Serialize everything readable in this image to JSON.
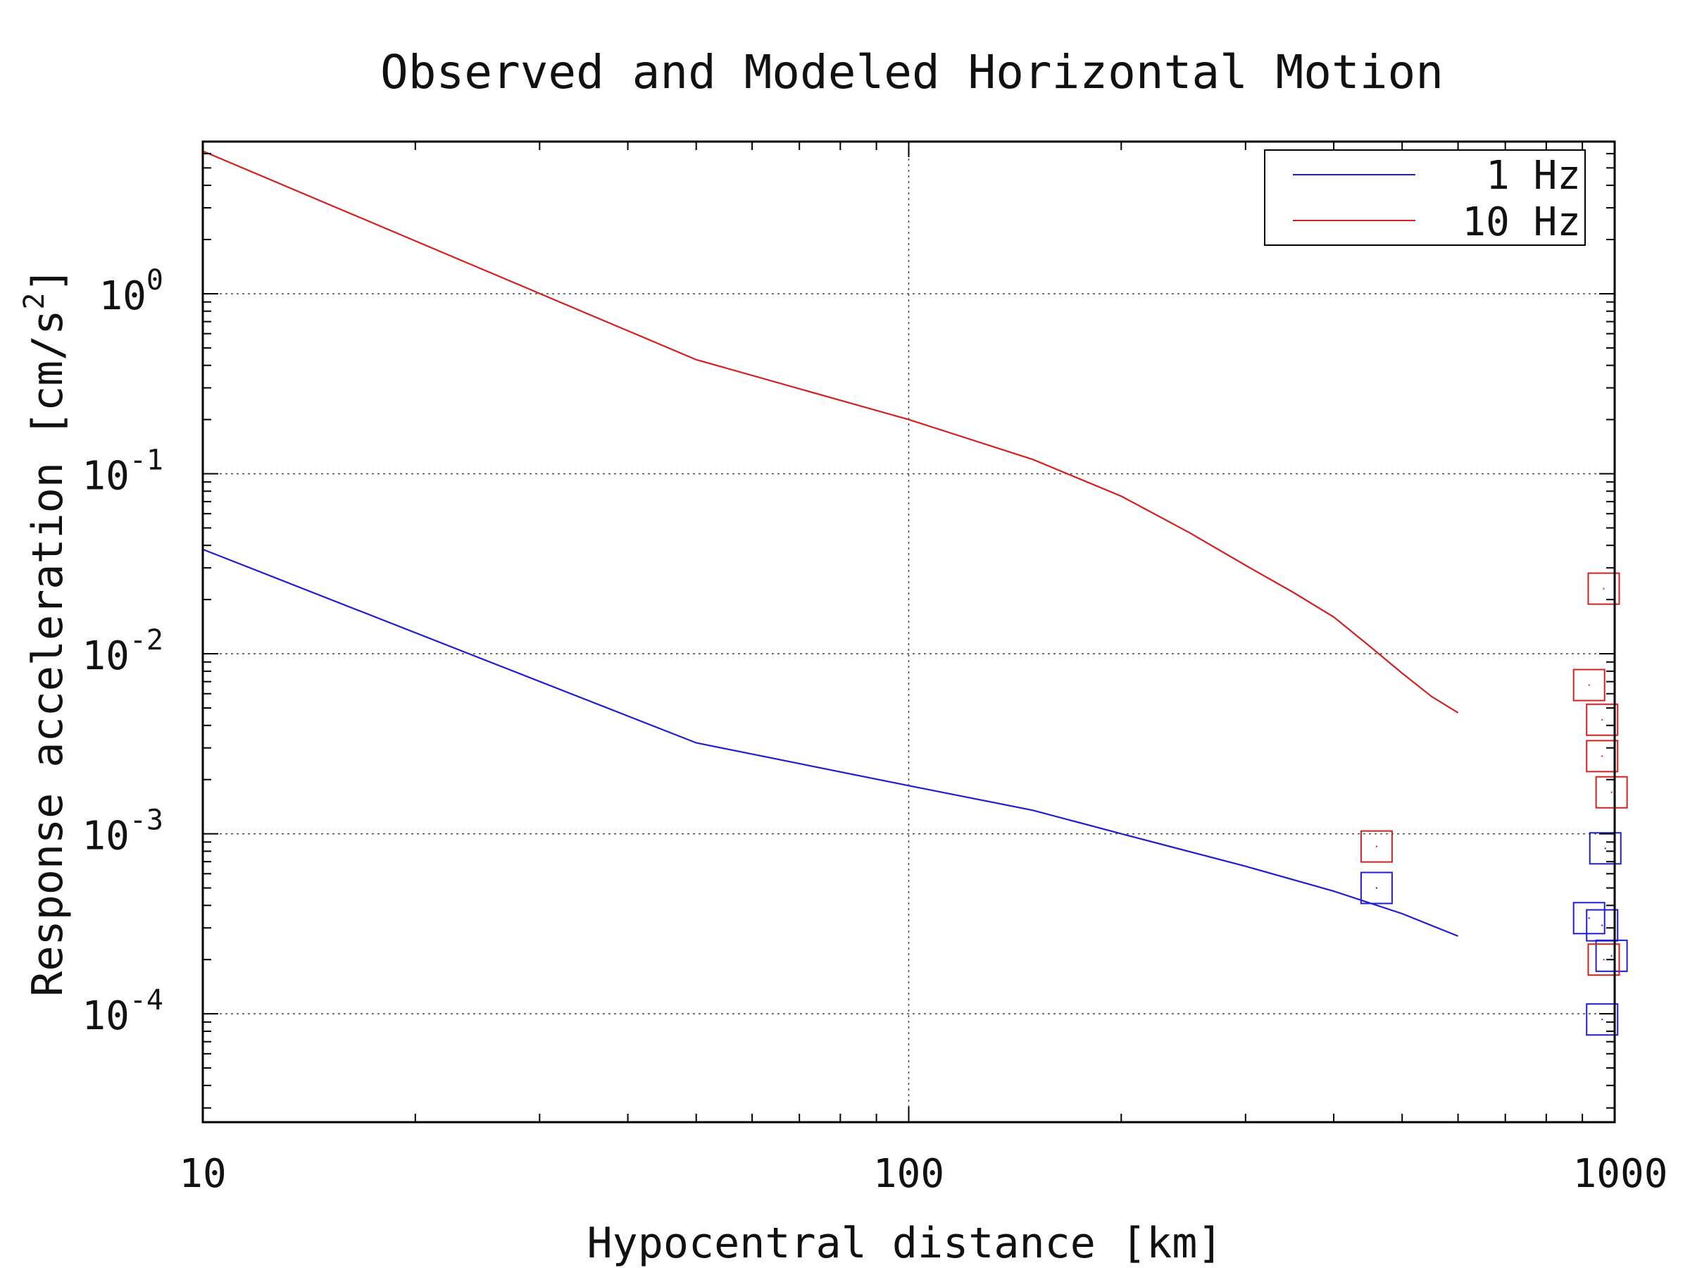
{
  "chart_data": {
    "type": "line",
    "title": "Observed and Modeled Horizontal Motion",
    "xlabel": "Hypocentral distance [km]",
    "ylabel_main": "Response acceleration [cm/s",
    "ylabel_sup": "2",
    "ylabel_close": "]",
    "xscale": "log",
    "yscale": "log",
    "xlim": [
      10,
      1000
    ],
    "ylim": [
      2.5e-05,
      7
    ],
    "x_ticks": [
      {
        "label": "10",
        "value": 10
      },
      {
        "label": "100",
        "value": 100
      },
      {
        "label": "1000",
        "value": 1000
      }
    ],
    "y_ticks": [
      {
        "base": "10",
        "exp": "0",
        "value": 1
      },
      {
        "base": "10",
        "exp": "-1",
        "value": 0.1
      },
      {
        "base": "10",
        "exp": "-2",
        "value": 0.01
      },
      {
        "base": "10",
        "exp": "-3",
        "value": 0.001
      },
      {
        "base": "10",
        "exp": "-4",
        "value": 0.0001
      }
    ],
    "grid": true,
    "legend_position": "top-right",
    "series": [
      {
        "name": "1 Hz",
        "color": "#1f1fd0",
        "x": [
          10,
          50,
          100,
          150,
          200,
          300,
          400,
          500,
          600
        ],
        "y": [
          0.038,
          0.0032,
          0.00185,
          0.00135,
          0.001,
          0.00066,
          0.00048,
          0.00036,
          0.00027
        ]
      },
      {
        "name": "10 Hz",
        "color": "#d42020",
        "x": [
          10,
          50,
          100,
          150,
          200,
          250,
          300,
          350,
          400,
          450,
          500,
          550,
          600
        ],
        "y": [
          6.2,
          0.43,
          0.2,
          0.12,
          0.075,
          0.047,
          0.031,
          0.022,
          0.016,
          0.011,
          0.0078,
          0.0058,
          0.0047
        ]
      }
    ],
    "observed": [
      {
        "freq": "1 Hz",
        "color": "#1f1fd0",
        "points": [
          [
            460,
            0.0005
          ],
          [
            920,
            0.00034
          ],
          [
            960,
            0.00031
          ],
          [
            970,
            0.00083
          ],
          [
            990,
            0.00021
          ],
          [
            960,
            9.3e-05
          ]
        ]
      },
      {
        "freq": "10 Hz",
        "color": "#d42020",
        "points": [
          [
            460,
            0.00085
          ],
          [
            965,
            0.023
          ],
          [
            920,
            0.0067
          ],
          [
            960,
            0.0043
          ],
          [
            960,
            0.0027
          ],
          [
            990,
            0.0017
          ],
          [
            965,
            0.0002
          ]
        ]
      }
    ]
  }
}
